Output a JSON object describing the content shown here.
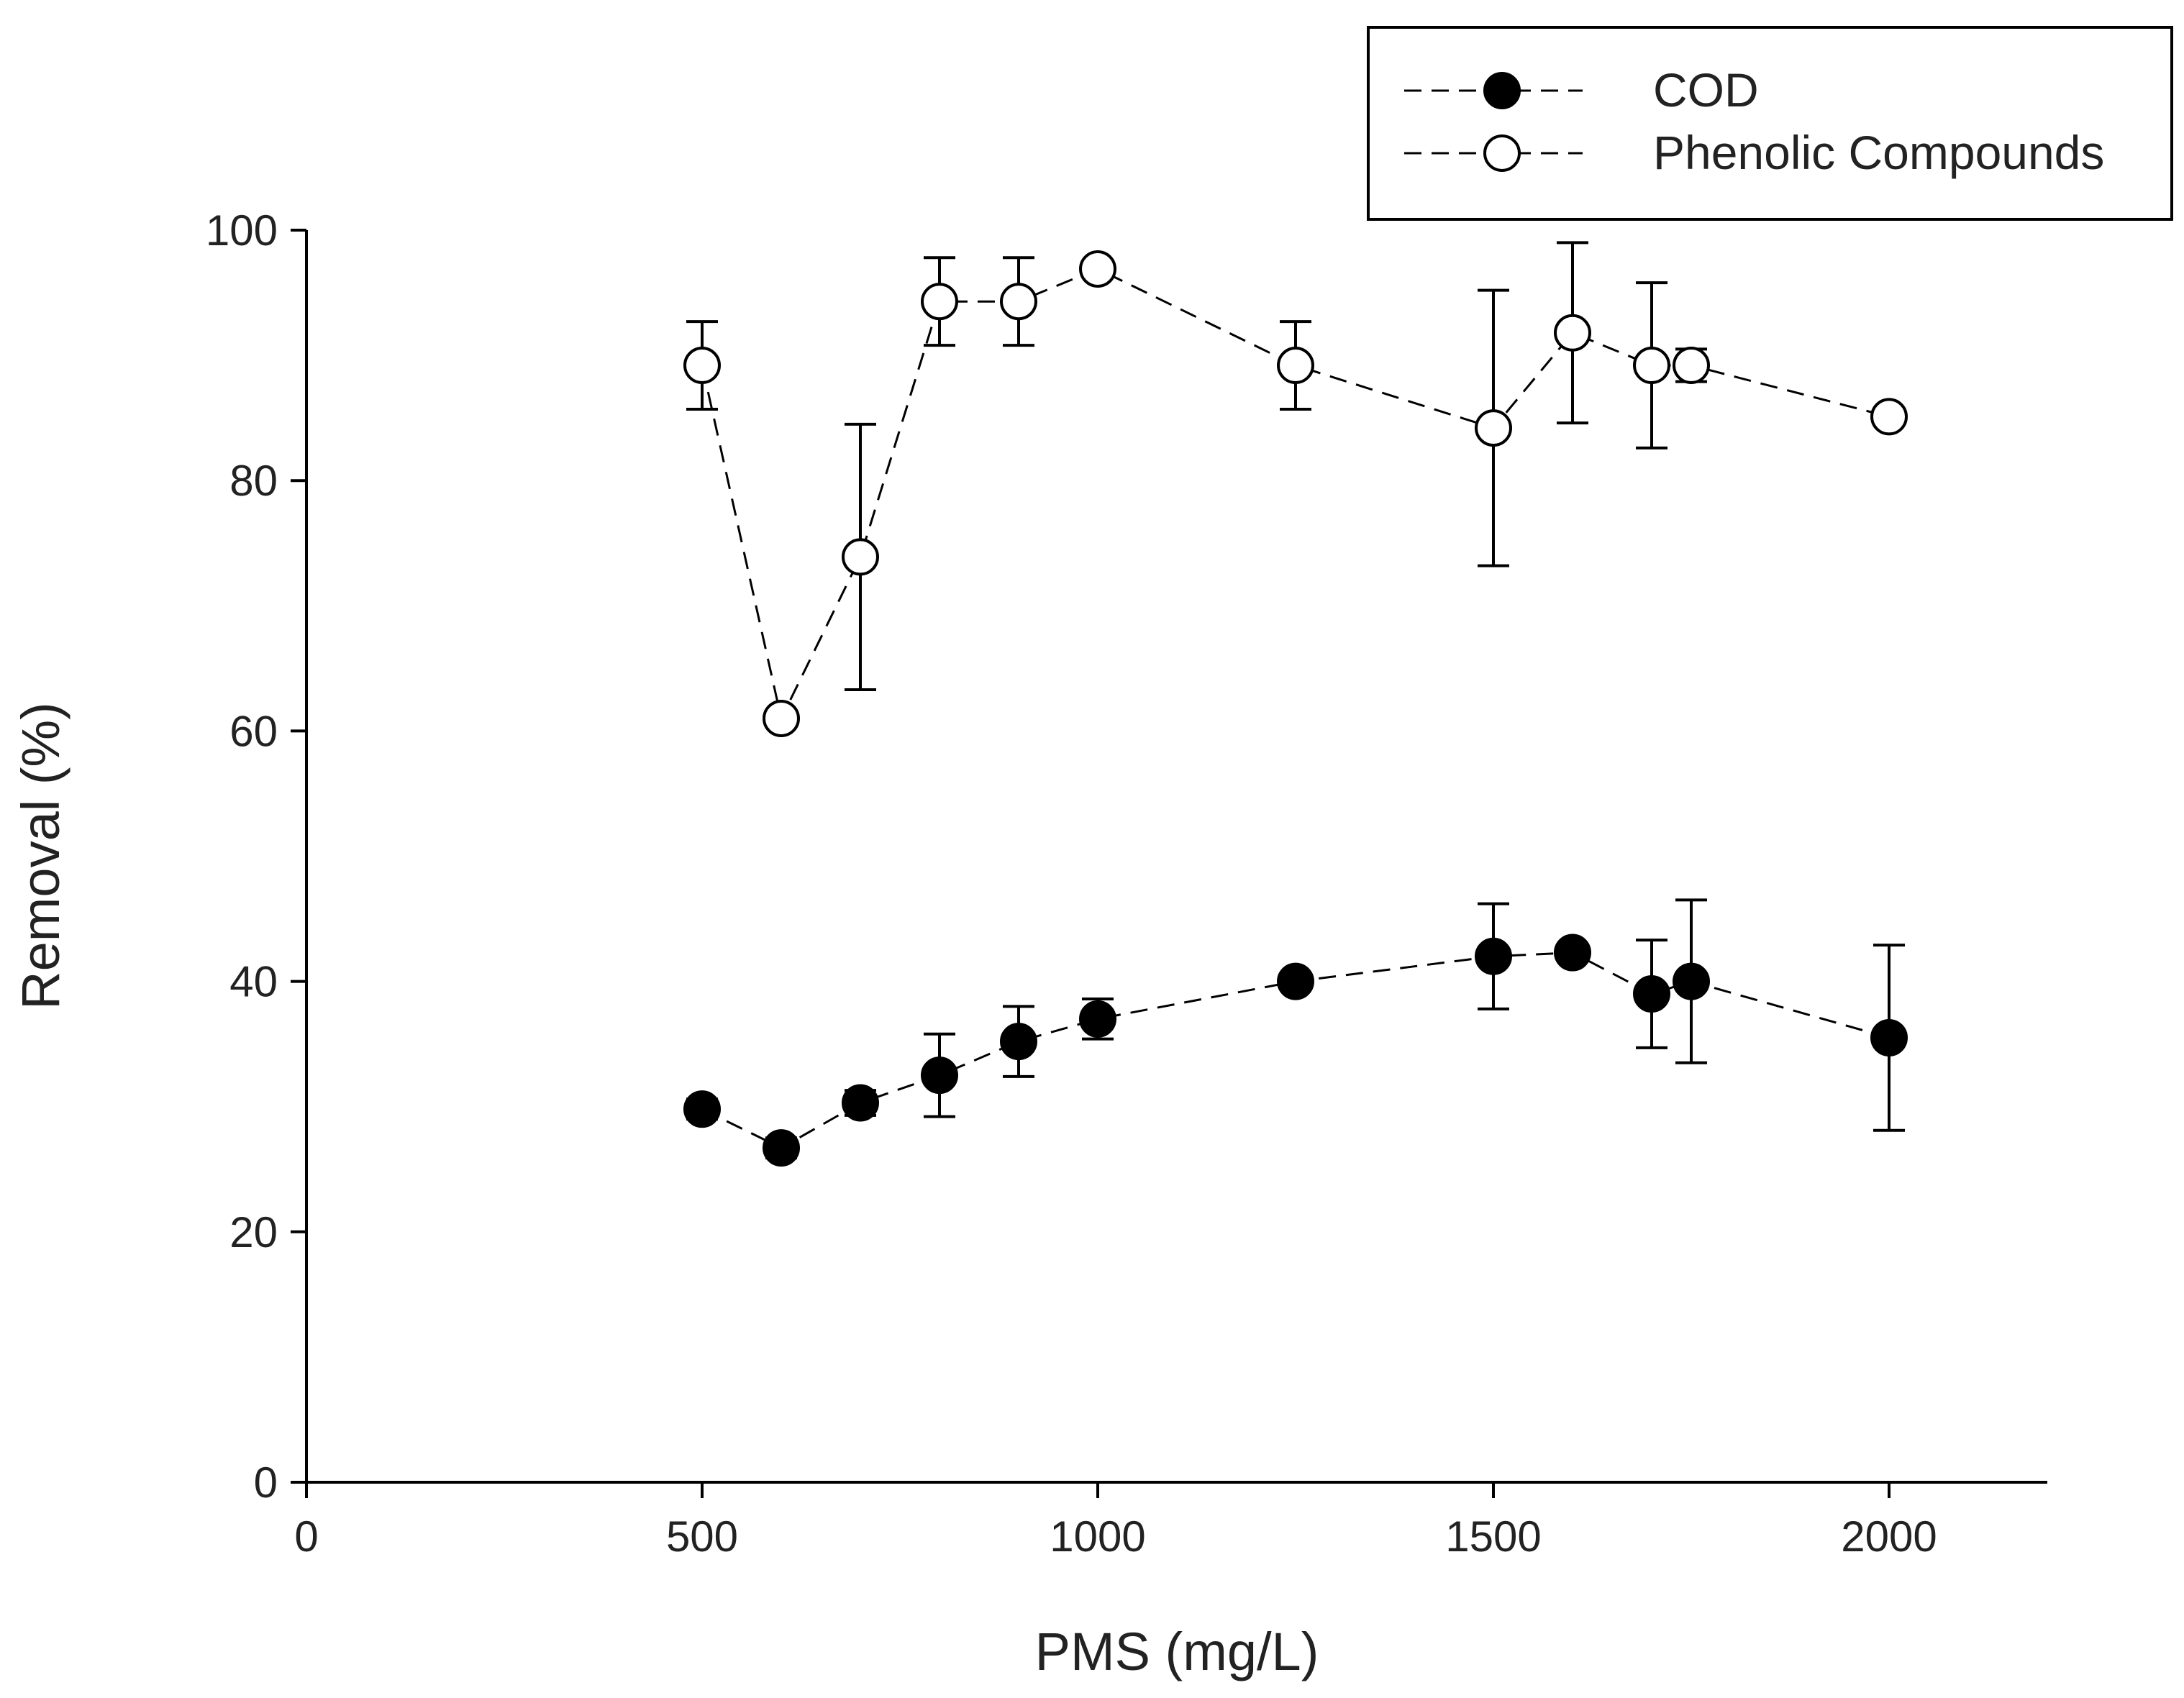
{
  "chart_data": {
    "type": "scatter",
    "title": "",
    "xlabel": "PMS (mg/L)",
    "ylabel": "Removal (%)",
    "xlim": [
      0,
      2200
    ],
    "ylim": [
      0,
      100
    ],
    "xticks": [
      0,
      500,
      1000,
      1500,
      2000
    ],
    "yticks": [
      0,
      20,
      40,
      60,
      80,
      100
    ],
    "grid": false,
    "legend_position": "top-right",
    "series": [
      {
        "name": "COD",
        "marker": "filled-circle",
        "line": "dashed",
        "x": [
          500,
          600,
          700,
          800,
          900,
          1000,
          1250,
          1500,
          1600,
          1700,
          1750,
          2000
        ],
        "y": [
          29.8,
          26.7,
          30.3,
          32.5,
          35.2,
          37.0,
          40.0,
          42.0,
          42.3,
          39.0,
          40.0,
          35.5
        ],
        "yerr": [
          0.8,
          0.8,
          1.0,
          3.3,
          2.8,
          1.6,
          0.5,
          4.2,
          0.6,
          4.3,
          6.5,
          7.4
        ]
      },
      {
        "name": "Phenolic Compounds",
        "marker": "open-circle",
        "line": "dashed",
        "x": [
          500,
          600,
          700,
          800,
          900,
          1000,
          1250,
          1500,
          1600,
          1700,
          1750,
          2000
        ],
        "y": [
          89.2,
          61.0,
          73.9,
          94.3,
          94.3,
          96.9,
          89.2,
          84.2,
          91.8,
          89.2,
          89.2,
          85.1
        ],
        "yerr": [
          3.5,
          0.5,
          10.6,
          3.5,
          3.5,
          0.5,
          3.5,
          11.0,
          7.2,
          6.6,
          1.3,
          0.5
        ]
      }
    ]
  }
}
